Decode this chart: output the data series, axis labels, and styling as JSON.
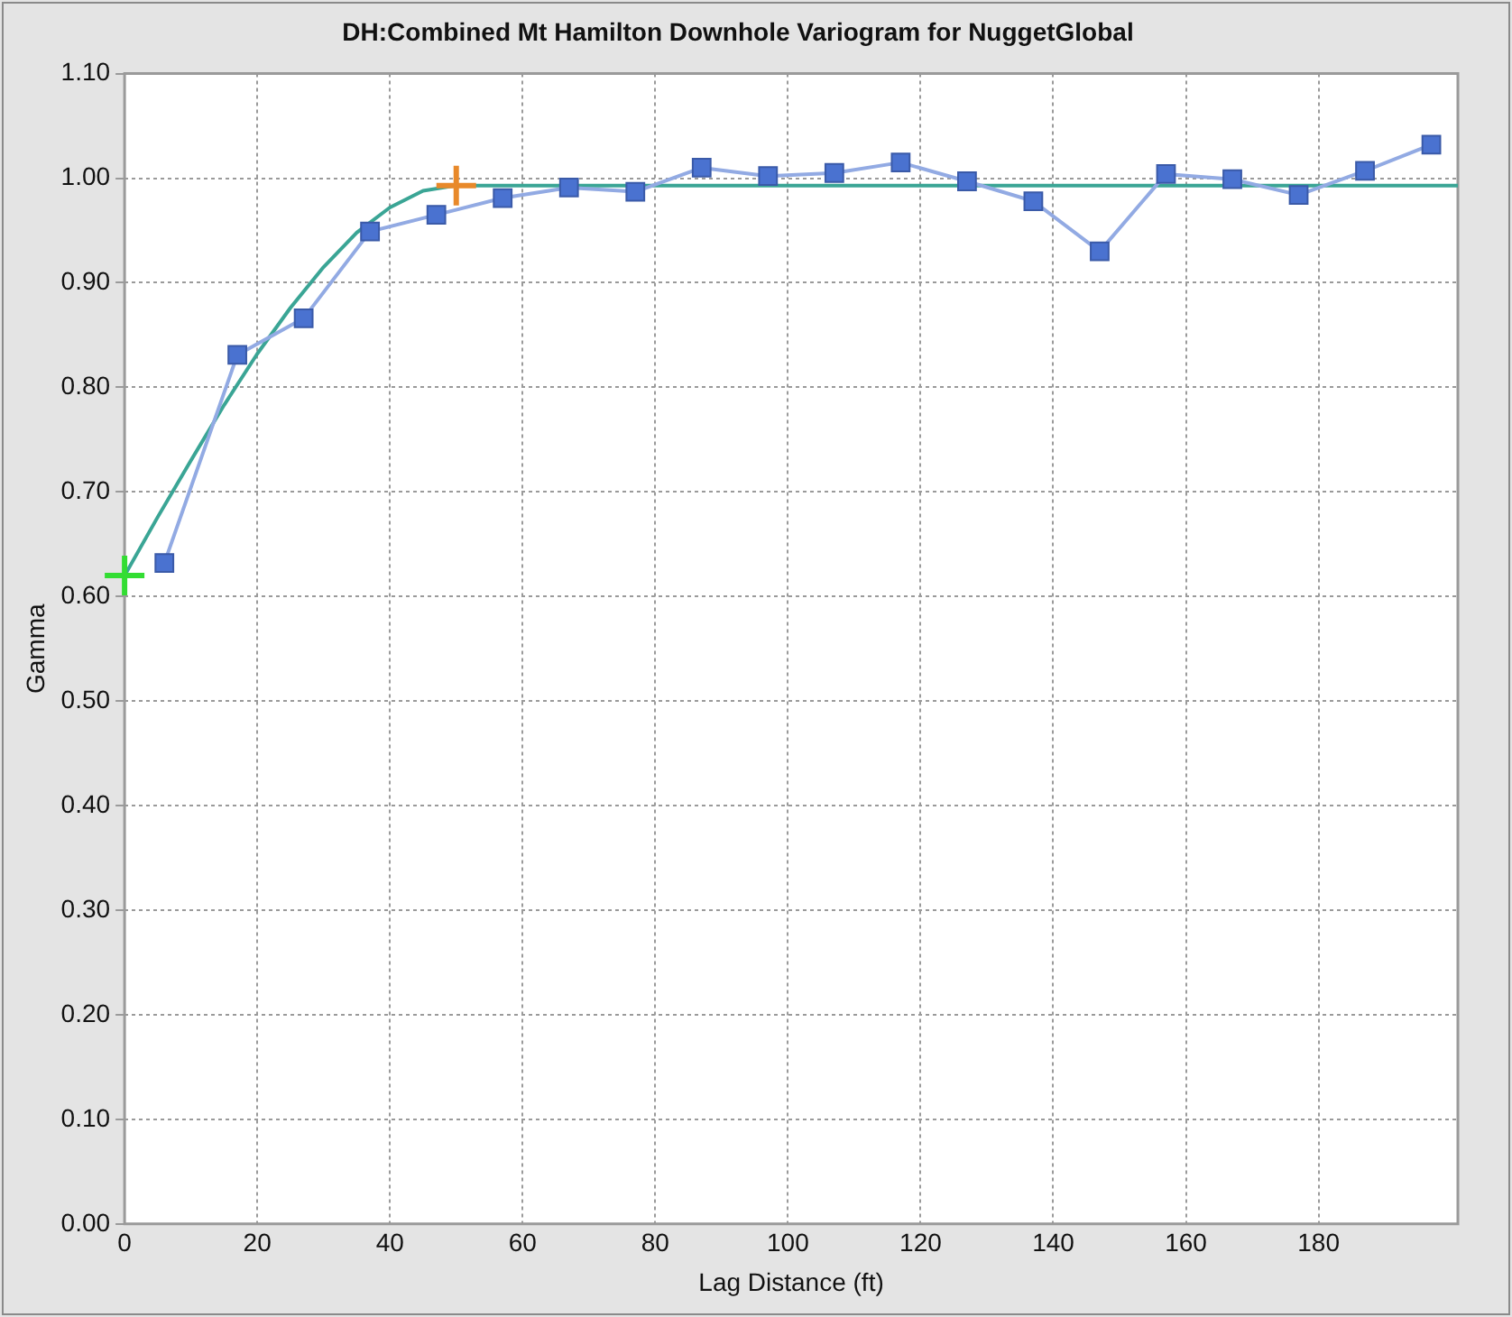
{
  "chart_data": {
    "type": "line",
    "title": "DH:Combined Mt Hamilton Downhole Variogram for NuggetGlobal",
    "xlabel": "Lag Distance (ft)",
    "ylabel": "Gamma",
    "xlim": [
      0,
      201
    ],
    "xticks": [
      0,
      20,
      40,
      60,
      80,
      100,
      120,
      140,
      160,
      180
    ],
    "ylim": [
      0,
      1.1
    ],
    "yticks": [
      {
        "value": 0,
        "label": "0.00"
      },
      {
        "value": 0.1,
        "label": "0.10"
      },
      {
        "value": 0.2,
        "label": "0.20"
      },
      {
        "value": 0.3,
        "label": "0.30"
      },
      {
        "value": 0.4,
        "label": "0.40"
      },
      {
        "value": 0.5,
        "label": "0.50"
      },
      {
        "value": 0.6,
        "label": "0.60"
      },
      {
        "value": 0.7,
        "label": "0.70"
      },
      {
        "value": 0.8,
        "label": "0.80"
      },
      {
        "value": 0.9,
        "label": "0.90"
      },
      {
        "value": 1,
        "label": "1.00"
      },
      {
        "value": 1.1,
        "label": "1.10"
      }
    ],
    "grid": true,
    "legend": false,
    "line_style": "solid",
    "series": [
      {
        "color": "#4a72d0",
        "marker": "square",
        "x": [
          6,
          17,
          27,
          37,
          47,
          57,
          67,
          77,
          87,
          97,
          107,
          117,
          127,
          137,
          147,
          157,
          167,
          177,
          187,
          197
        ],
        "values": [
          0.632,
          0.831,
          0.866,
          0.949,
          0.965,
          0.981,
          0.991,
          0.987,
          1.01,
          1.002,
          1.005,
          1.015,
          0.997,
          0.978,
          0.93,
          1.004,
          0.999,
          0.984,
          1.007,
          1.032
        ]
      },
      {
        "color": "#3aa595",
        "marker": "none",
        "x": [
          0,
          5,
          10,
          15,
          20,
          25,
          30,
          35,
          40,
          45,
          50,
          201
        ],
        "values": [
          0.62,
          0.676,
          0.73,
          0.783,
          0.832,
          0.876,
          0.915,
          0.948,
          0.972,
          0.988,
          0.993,
          0.993
        ]
      },
      {
        "type": "scatter",
        "color": "#33dd33",
        "marker": "cross",
        "x": [
          0
        ],
        "values": [
          0.62
        ]
      },
      {
        "type": "scatter",
        "color": "#e8892a",
        "marker": "cross",
        "x": [
          50
        ],
        "values": [
          0.993
        ]
      }
    ]
  }
}
